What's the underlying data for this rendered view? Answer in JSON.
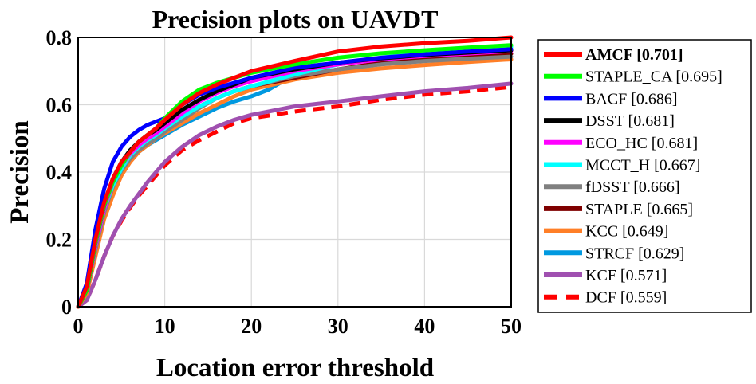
{
  "chart_data": {
    "type": "line",
    "title": "Precision plots on UAVDT",
    "xlabel": "Location error threshold",
    "ylabel": "Precision",
    "xlim": [
      0,
      50
    ],
    "ylim": [
      0,
      0.8
    ],
    "xticks": [
      "0",
      "10",
      "20",
      "30",
      "40",
      "50"
    ],
    "yticks": [
      "0",
      "0.2",
      "0.4",
      "0.6",
      "0.8"
    ],
    "grid": true,
    "legend_position": "outside-right",
    "series": [
      {
        "name": "AMCF [0.701]",
        "color": "#ff0000",
        "dash": false,
        "bold": true,
        "points": [
          [
            0,
            0.0
          ],
          [
            1,
            0.06
          ],
          [
            2,
            0.2
          ],
          [
            3,
            0.31
          ],
          [
            4,
            0.38
          ],
          [
            5,
            0.43
          ],
          [
            6,
            0.46
          ],
          [
            7,
            0.49
          ],
          [
            8,
            0.51
          ],
          [
            9,
            0.53
          ],
          [
            10,
            0.555
          ],
          [
            12,
            0.6
          ],
          [
            14,
            0.635
          ],
          [
            16,
            0.66
          ],
          [
            18,
            0.68
          ],
          [
            20,
            0.7
          ],
          [
            25,
            0.73
          ],
          [
            30,
            0.758
          ],
          [
            35,
            0.773
          ],
          [
            40,
            0.783
          ],
          [
            45,
            0.79
          ],
          [
            50,
            0.8
          ]
        ]
      },
      {
        "name": "STAPLE_CA [0.695]",
        "color": "#00ff00",
        "dash": false,
        "points": [
          [
            0,
            0.0
          ],
          [
            1,
            0.05
          ],
          [
            2,
            0.19
          ],
          [
            3,
            0.3
          ],
          [
            4,
            0.37
          ],
          [
            5,
            0.42
          ],
          [
            6,
            0.46
          ],
          [
            7,
            0.49
          ],
          [
            8,
            0.51
          ],
          [
            9,
            0.53
          ],
          [
            10,
            0.56
          ],
          [
            12,
            0.61
          ],
          [
            14,
            0.645
          ],
          [
            16,
            0.665
          ],
          [
            18,
            0.68
          ],
          [
            20,
            0.695
          ],
          [
            25,
            0.72
          ],
          [
            30,
            0.74
          ],
          [
            35,
            0.753
          ],
          [
            40,
            0.762
          ],
          [
            45,
            0.77
          ],
          [
            50,
            0.777
          ]
        ]
      },
      {
        "name": "BACF [0.686]",
        "color": "#0000ff",
        "dash": false,
        "points": [
          [
            0,
            0.0
          ],
          [
            1,
            0.07
          ],
          [
            2,
            0.23
          ],
          [
            3,
            0.35
          ],
          [
            4,
            0.43
          ],
          [
            5,
            0.475
          ],
          [
            6,
            0.505
          ],
          [
            7,
            0.525
          ],
          [
            8,
            0.54
          ],
          [
            9,
            0.55
          ],
          [
            10,
            0.56
          ],
          [
            12,
            0.6
          ],
          [
            14,
            0.63
          ],
          [
            16,
            0.65
          ],
          [
            18,
            0.665
          ],
          [
            20,
            0.68
          ],
          [
            25,
            0.71
          ],
          [
            30,
            0.725
          ],
          [
            35,
            0.74
          ],
          [
            40,
            0.75
          ],
          [
            45,
            0.758
          ],
          [
            50,
            0.765
          ]
        ]
      },
      {
        "name": "DSST [0.681]",
        "color": "#000000",
        "dash": false,
        "points": [
          [
            0,
            0.0
          ],
          [
            1,
            0.05
          ],
          [
            2,
            0.19
          ],
          [
            3,
            0.3
          ],
          [
            4,
            0.38
          ],
          [
            5,
            0.43
          ],
          [
            6,
            0.465
          ],
          [
            7,
            0.49
          ],
          [
            8,
            0.51
          ],
          [
            9,
            0.525
          ],
          [
            10,
            0.545
          ],
          [
            12,
            0.585
          ],
          [
            14,
            0.615
          ],
          [
            16,
            0.64
          ],
          [
            18,
            0.66
          ],
          [
            20,
            0.68
          ],
          [
            25,
            0.705
          ],
          [
            30,
            0.725
          ],
          [
            35,
            0.738
          ],
          [
            40,
            0.748
          ],
          [
            45,
            0.755
          ],
          [
            50,
            0.762
          ]
        ]
      },
      {
        "name": "ECO_HC [0.681]",
        "color": "#ff00ff",
        "dash": false,
        "points": [
          [
            0,
            0.0
          ],
          [
            1,
            0.05
          ],
          [
            2,
            0.18
          ],
          [
            3,
            0.29
          ],
          [
            4,
            0.37
          ],
          [
            5,
            0.42
          ],
          [
            6,
            0.455
          ],
          [
            7,
            0.48
          ],
          [
            8,
            0.5
          ],
          [
            9,
            0.515
          ],
          [
            10,
            0.535
          ],
          [
            12,
            0.575
          ],
          [
            14,
            0.61
          ],
          [
            16,
            0.635
          ],
          [
            18,
            0.655
          ],
          [
            20,
            0.67
          ],
          [
            25,
            0.7
          ],
          [
            30,
            0.72
          ],
          [
            35,
            0.735
          ],
          [
            40,
            0.745
          ],
          [
            45,
            0.752
          ],
          [
            50,
            0.76
          ]
        ]
      },
      {
        "name": "MCCT_H [0.667]",
        "color": "#00ffff",
        "dash": false,
        "points": [
          [
            0,
            0.0
          ],
          [
            1,
            0.05
          ],
          [
            2,
            0.18
          ],
          [
            3,
            0.29
          ],
          [
            4,
            0.36
          ],
          [
            5,
            0.41
          ],
          [
            6,
            0.45
          ],
          [
            7,
            0.475
          ],
          [
            8,
            0.495
          ],
          [
            9,
            0.51
          ],
          [
            10,
            0.53
          ],
          [
            12,
            0.565
          ],
          [
            14,
            0.595
          ],
          [
            16,
            0.62
          ],
          [
            18,
            0.64
          ],
          [
            20,
            0.655
          ],
          [
            25,
            0.69
          ],
          [
            30,
            0.72
          ],
          [
            35,
            0.74
          ],
          [
            40,
            0.755
          ],
          [
            45,
            0.765
          ],
          [
            50,
            0.772
          ]
        ]
      },
      {
        "name": "fDSST [0.666]",
        "color": "#808080",
        "dash": false,
        "points": [
          [
            0,
            0.0
          ],
          [
            1,
            0.05
          ],
          [
            2,
            0.17
          ],
          [
            3,
            0.28
          ],
          [
            4,
            0.355
          ],
          [
            5,
            0.405
          ],
          [
            6,
            0.44
          ],
          [
            7,
            0.465
          ],
          [
            8,
            0.485
          ],
          [
            9,
            0.5
          ],
          [
            10,
            0.52
          ],
          [
            12,
            0.555
          ],
          [
            14,
            0.59
          ],
          [
            16,
            0.62
          ],
          [
            18,
            0.64
          ],
          [
            20,
            0.655
          ],
          [
            25,
            0.685
          ],
          [
            30,
            0.705
          ],
          [
            35,
            0.72
          ],
          [
            40,
            0.73
          ],
          [
            45,
            0.737
          ],
          [
            50,
            0.743
          ]
        ]
      },
      {
        "name": "STAPLE [0.665]",
        "color": "#7f0000",
        "dash": false,
        "points": [
          [
            0,
            0.0
          ],
          [
            1,
            0.05
          ],
          [
            2,
            0.18
          ],
          [
            3,
            0.29
          ],
          [
            4,
            0.36
          ],
          [
            5,
            0.41
          ],
          [
            6,
            0.445
          ],
          [
            7,
            0.47
          ],
          [
            8,
            0.49
          ],
          [
            9,
            0.505
          ],
          [
            10,
            0.525
          ],
          [
            12,
            0.565
          ],
          [
            14,
            0.595
          ],
          [
            16,
            0.62
          ],
          [
            18,
            0.64
          ],
          [
            20,
            0.655
          ],
          [
            25,
            0.68
          ],
          [
            30,
            0.705
          ],
          [
            35,
            0.725
          ],
          [
            40,
            0.738
          ],
          [
            45,
            0.745
          ],
          [
            50,
            0.752
          ]
        ]
      },
      {
        "name": "KCC [0.649]",
        "color": "#ff7f27",
        "dash": false,
        "points": [
          [
            0,
            0.0
          ],
          [
            1,
            0.04
          ],
          [
            2,
            0.15
          ],
          [
            3,
            0.26
          ],
          [
            4,
            0.33
          ],
          [
            5,
            0.39
          ],
          [
            6,
            0.43
          ],
          [
            7,
            0.46
          ],
          [
            8,
            0.48
          ],
          [
            9,
            0.5
          ],
          [
            10,
            0.515
          ],
          [
            12,
            0.545
          ],
          [
            14,
            0.575
          ],
          [
            16,
            0.6
          ],
          [
            18,
            0.625
          ],
          [
            20,
            0.645
          ],
          [
            25,
            0.675
          ],
          [
            30,
            0.695
          ],
          [
            35,
            0.708
          ],
          [
            40,
            0.718
          ],
          [
            45,
            0.727
          ],
          [
            50,
            0.735
          ]
        ]
      },
      {
        "name": "STRCF [0.629]",
        "color": "#0099e0",
        "dash": false,
        "points": [
          [
            0,
            0.0
          ],
          [
            1,
            0.05
          ],
          [
            2,
            0.18
          ],
          [
            3,
            0.29
          ],
          [
            4,
            0.36
          ],
          [
            5,
            0.41
          ],
          [
            6,
            0.44
          ],
          [
            7,
            0.46
          ],
          [
            8,
            0.48
          ],
          [
            9,
            0.495
          ],
          [
            10,
            0.51
          ],
          [
            12,
            0.54
          ],
          [
            14,
            0.565
          ],
          [
            16,
            0.59
          ],
          [
            18,
            0.61
          ],
          [
            20,
            0.625
          ],
          [
            22,
            0.645
          ],
          [
            25,
            0.69
          ],
          [
            30,
            0.72
          ],
          [
            35,
            0.738
          ],
          [
            40,
            0.75
          ],
          [
            45,
            0.758
          ],
          [
            50,
            0.765
          ]
        ]
      },
      {
        "name": "KCF [0.571]",
        "color": "#a050b0",
        "dash": false,
        "points": [
          [
            0,
            0.0
          ],
          [
            1,
            0.02
          ],
          [
            2,
            0.08
          ],
          [
            3,
            0.15
          ],
          [
            4,
            0.21
          ],
          [
            5,
            0.26
          ],
          [
            6,
            0.3
          ],
          [
            7,
            0.335
          ],
          [
            8,
            0.37
          ],
          [
            9,
            0.4
          ],
          [
            10,
            0.43
          ],
          [
            12,
            0.475
          ],
          [
            14,
            0.51
          ],
          [
            16,
            0.535
          ],
          [
            18,
            0.555
          ],
          [
            20,
            0.57
          ],
          [
            25,
            0.595
          ],
          [
            30,
            0.61
          ],
          [
            35,
            0.625
          ],
          [
            40,
            0.64
          ],
          [
            45,
            0.65
          ],
          [
            50,
            0.663
          ]
        ]
      },
      {
        "name": "DCF [0.559]",
        "color": "#ff0000",
        "dash": true,
        "points": [
          [
            0,
            0.0
          ],
          [
            1,
            0.02
          ],
          [
            2,
            0.08
          ],
          [
            3,
            0.15
          ],
          [
            4,
            0.21
          ],
          [
            5,
            0.255
          ],
          [
            6,
            0.295
          ],
          [
            7,
            0.33
          ],
          [
            8,
            0.36
          ],
          [
            9,
            0.39
          ],
          [
            10,
            0.42
          ],
          [
            12,
            0.465
          ],
          [
            14,
            0.495
          ],
          [
            16,
            0.52
          ],
          [
            18,
            0.545
          ],
          [
            20,
            0.56
          ],
          [
            25,
            0.58
          ],
          [
            30,
            0.595
          ],
          [
            35,
            0.615
          ],
          [
            40,
            0.63
          ],
          [
            45,
            0.64
          ],
          [
            50,
            0.653
          ]
        ]
      }
    ]
  }
}
